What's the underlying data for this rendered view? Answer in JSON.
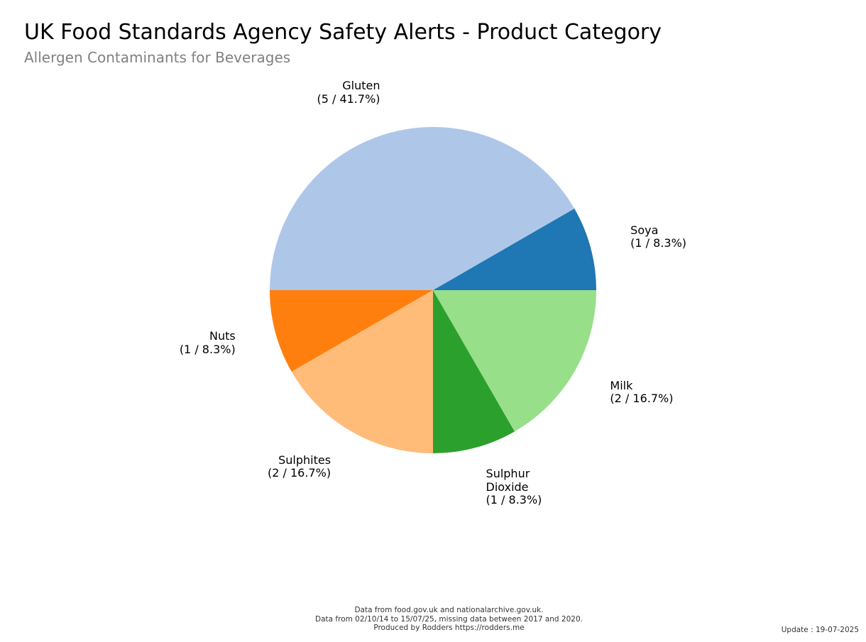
{
  "chart_data": {
    "type": "pie",
    "title": "UK Food Standards Agency Safety Alerts - Product Category",
    "subtitle": "Allergen Contaminants for Beverages",
    "slices": [
      {
        "label": "Soya",
        "value": 1,
        "percent": "8.3%",
        "display": "(1 / 8.3%)",
        "color": "#1f77b4"
      },
      {
        "label": "Gluten",
        "value": 5,
        "percent": "41.7%",
        "display": "(5 / 41.7%)",
        "color": "#aec7e8"
      },
      {
        "label": "Nuts",
        "value": 1,
        "percent": "8.3%",
        "display": "(1 / 8.3%)",
        "color": "#ff7f0e"
      },
      {
        "label": "Sulphites",
        "value": 2,
        "percent": "16.7%",
        "display": "(2 / 16.7%)",
        "color": "#ffbb78"
      },
      {
        "label": "Sulphur Dioxide",
        "value": 1,
        "percent": "8.3%",
        "display": "(1 / 8.3%)",
        "color": "#2ca02c"
      },
      {
        "label": "Milk",
        "value": 2,
        "percent": "16.7%",
        "display": "(2 / 16.7%)",
        "color": "#98df8a"
      }
    ]
  },
  "footer": {
    "line1": "Data from food.gov.uk and nationalarchive.gov.uk.",
    "line2": "Data from 02/10/14 to 15/07/25, missing data between 2017 and 2020.",
    "line3": "Produced by Rodders https://rodders.me",
    "update": "Update : 19-07-2025"
  }
}
